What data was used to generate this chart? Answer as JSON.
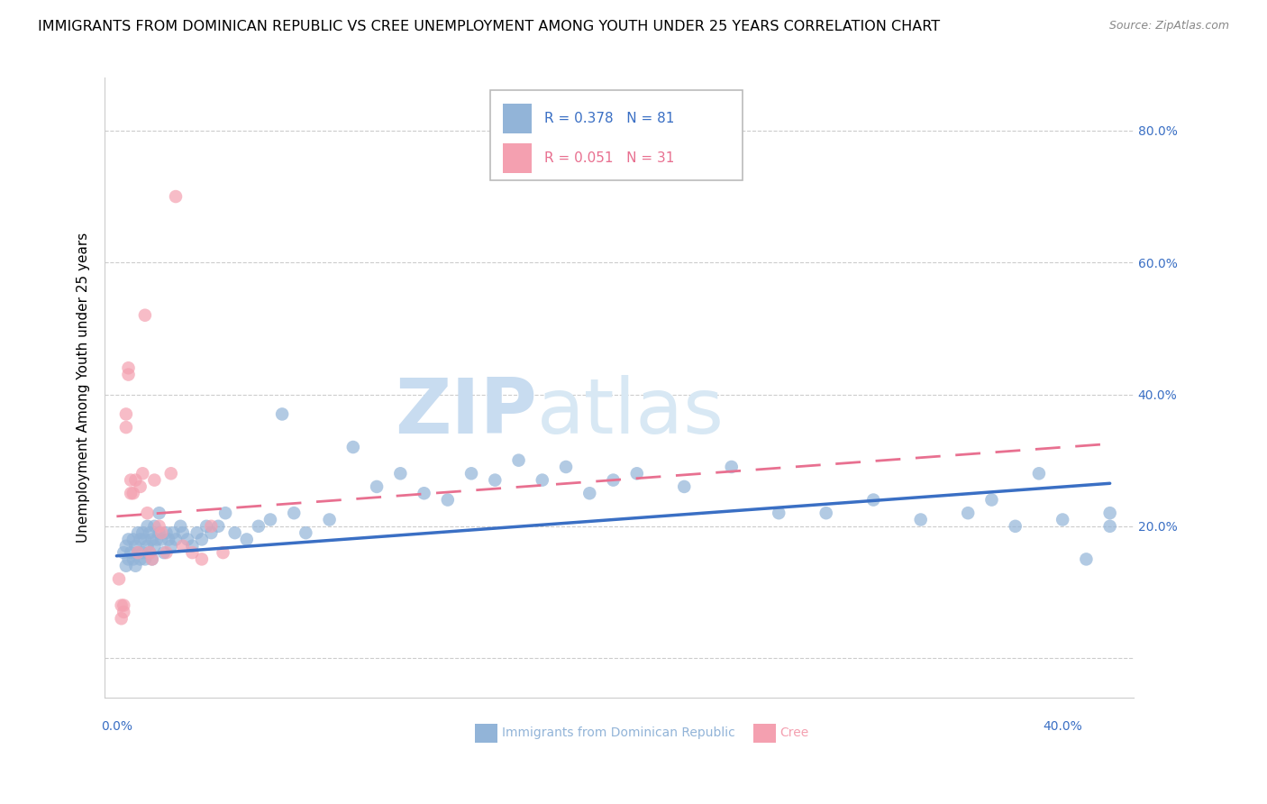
{
  "title": "IMMIGRANTS FROM DOMINICAN REPUBLIC VS CREE UNEMPLOYMENT AMONG YOUTH UNDER 25 YEARS CORRELATION CHART",
  "source": "Source: ZipAtlas.com",
  "ylabel": "Unemployment Among Youth under 25 years",
  "yticks": [
    0.0,
    0.2,
    0.4,
    0.6,
    0.8
  ],
  "ytick_labels": [
    "",
    "20.0%",
    "40.0%",
    "60.0%",
    "80.0%"
  ],
  "xticks": [
    0.0,
    0.1,
    0.2,
    0.3,
    0.4
  ],
  "xlim": [
    -0.005,
    0.43
  ],
  "ylim": [
    -0.06,
    0.88
  ],
  "blue_color": "#92B4D8",
  "pink_color": "#F4A0B0",
  "blue_line_color": "#3A6FC4",
  "pink_line_color": "#E87090",
  "watermark_zip": "ZIP",
  "watermark_atlas": "atlas",
  "blue_scatter_x": [
    0.003,
    0.004,
    0.004,
    0.005,
    0.005,
    0.006,
    0.007,
    0.007,
    0.008,
    0.008,
    0.009,
    0.009,
    0.01,
    0.01,
    0.011,
    0.011,
    0.012,
    0.012,
    0.013,
    0.013,
    0.014,
    0.014,
    0.015,
    0.015,
    0.016,
    0.016,
    0.017,
    0.018,
    0.018,
    0.019,
    0.02,
    0.021,
    0.022,
    0.023,
    0.024,
    0.025,
    0.027,
    0.028,
    0.03,
    0.032,
    0.034,
    0.036,
    0.038,
    0.04,
    0.043,
    0.046,
    0.05,
    0.055,
    0.06,
    0.065,
    0.07,
    0.075,
    0.08,
    0.09,
    0.1,
    0.11,
    0.12,
    0.13,
    0.14,
    0.15,
    0.16,
    0.17,
    0.18,
    0.19,
    0.2,
    0.21,
    0.22,
    0.24,
    0.26,
    0.28,
    0.3,
    0.32,
    0.34,
    0.36,
    0.37,
    0.38,
    0.39,
    0.4,
    0.41,
    0.42,
    0.42
  ],
  "blue_scatter_y": [
    0.16,
    0.14,
    0.17,
    0.15,
    0.18,
    0.16,
    0.15,
    0.18,
    0.14,
    0.17,
    0.16,
    0.19,
    0.15,
    0.18,
    0.16,
    0.19,
    0.15,
    0.18,
    0.17,
    0.2,
    0.16,
    0.19,
    0.15,
    0.18,
    0.17,
    0.2,
    0.18,
    0.19,
    0.22,
    0.18,
    0.16,
    0.19,
    0.18,
    0.17,
    0.19,
    0.18,
    0.2,
    0.19,
    0.18,
    0.17,
    0.19,
    0.18,
    0.2,
    0.19,
    0.2,
    0.22,
    0.19,
    0.18,
    0.2,
    0.21,
    0.37,
    0.22,
    0.19,
    0.21,
    0.32,
    0.26,
    0.28,
    0.25,
    0.24,
    0.28,
    0.27,
    0.3,
    0.27,
    0.29,
    0.25,
    0.27,
    0.28,
    0.26,
    0.29,
    0.22,
    0.22,
    0.24,
    0.21,
    0.22,
    0.24,
    0.2,
    0.28,
    0.21,
    0.15,
    0.22,
    0.2
  ],
  "pink_scatter_x": [
    0.001,
    0.002,
    0.002,
    0.003,
    0.003,
    0.004,
    0.004,
    0.005,
    0.005,
    0.006,
    0.006,
    0.007,
    0.008,
    0.009,
    0.01,
    0.011,
    0.012,
    0.013,
    0.014,
    0.015,
    0.016,
    0.018,
    0.019,
    0.021,
    0.023,
    0.025,
    0.028,
    0.032,
    0.036,
    0.04,
    0.045
  ],
  "pink_scatter_y": [
    0.12,
    0.06,
    0.08,
    0.07,
    0.08,
    0.35,
    0.37,
    0.43,
    0.44,
    0.25,
    0.27,
    0.25,
    0.27,
    0.16,
    0.26,
    0.28,
    0.52,
    0.22,
    0.16,
    0.15,
    0.27,
    0.2,
    0.19,
    0.16,
    0.28,
    0.7,
    0.17,
    0.16,
    0.15,
    0.2,
    0.16
  ],
  "blue_trend_x": [
    0.0,
    0.42
  ],
  "blue_trend_y": [
    0.155,
    0.265
  ],
  "pink_trend_x": [
    0.0,
    0.42
  ],
  "pink_trend_y": [
    0.215,
    0.325
  ],
  "grid_color": "#CCCCCC",
  "title_fontsize": 11.5,
  "axis_tick_fontsize": 10,
  "ylabel_fontsize": 11
}
